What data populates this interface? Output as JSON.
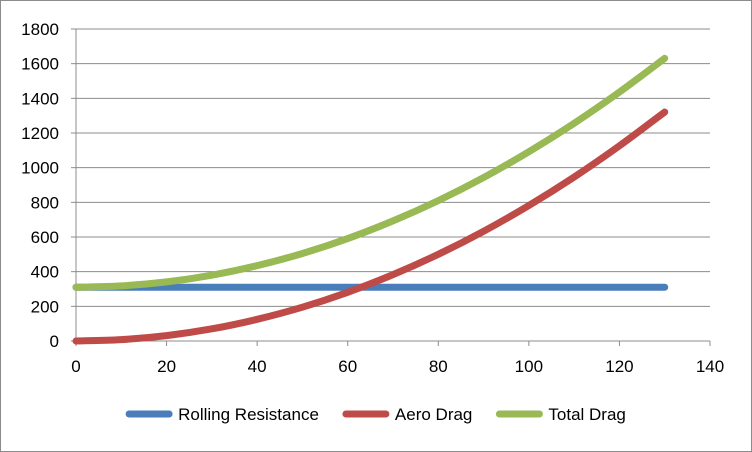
{
  "chart_data": {
    "type": "line",
    "title": "",
    "xlabel": "",
    "ylabel": "",
    "xlim": [
      0,
      140
    ],
    "ylim": [
      0,
      1800
    ],
    "x_ticks": [
      "0",
      "20",
      "40",
      "60",
      "80",
      "100",
      "120",
      "140"
    ],
    "y_ticks": [
      "0",
      "200",
      "400",
      "600",
      "800",
      "1000",
      "1200",
      "1400",
      "1600",
      "1800"
    ],
    "grid": "horizontal",
    "legend_position": "bottom",
    "x": [
      0,
      10,
      20,
      30,
      40,
      50,
      60,
      70,
      80,
      90,
      100,
      110,
      120,
      130
    ],
    "series": [
      {
        "name": "Rolling Resistance",
        "color": "#4a7ebb",
        "values": [
          310,
          310,
          310,
          310,
          310,
          310,
          310,
          310,
          310,
          310,
          310,
          310,
          310,
          310
        ]
      },
      {
        "name": "Aero Drag",
        "color": "#be4b48",
        "values": [
          0,
          8,
          31,
          70,
          125,
          195,
          281,
          383,
          500,
          633,
          782,
          946,
          1126,
          1321
        ]
      },
      {
        "name": "Total Drag",
        "color": "#98b954",
        "values": [
          310,
          318,
          341,
          380,
          435,
          505,
          591,
          693,
          810,
          943,
          1092,
          1256,
          1436,
          1631
        ]
      }
    ]
  }
}
